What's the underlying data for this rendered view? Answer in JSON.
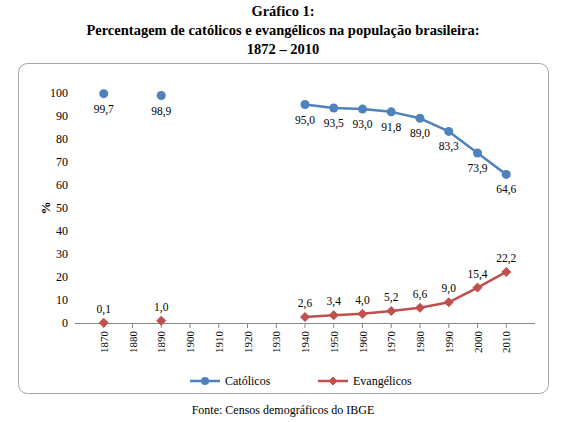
{
  "chart_data": {
    "type": "line",
    "title": [
      "Gráfico 1:",
      "Percentagem de católicos e evangélicos na população brasileira:",
      "1872 – 2010"
    ],
    "source": "Fonte: Censos demográficos do IBGE",
    "y_label": "%",
    "x": [
      1870,
      1880,
      1890,
      1900,
      1910,
      1920,
      1930,
      1940,
      1950,
      1960,
      1970,
      1980,
      1990,
      2000,
      2010
    ],
    "xlim": [
      1860,
      2020
    ],
    "xticks": [
      1870,
      1880,
      1890,
      1900,
      1910,
      1920,
      1930,
      1940,
      1950,
      1960,
      1970,
      1980,
      1990,
      2000,
      2010
    ],
    "ylim": [
      0,
      100
    ],
    "yticks": [
      0,
      10,
      20,
      30,
      40,
      50,
      60,
      70,
      80,
      90,
      100
    ],
    "grid": false,
    "legend": "bottom",
    "data_labels": true,
    "series": [
      {
        "name": "Católicos",
        "color": "#4f81bd",
        "marker": "circle",
        "values": [
          99.7,
          null,
          98.9,
          null,
          null,
          null,
          null,
          95.0,
          93.5,
          93.0,
          91.8,
          89.0,
          83.3,
          73.9,
          64.6
        ],
        "value_labels": [
          "99,7",
          null,
          "98,9",
          null,
          null,
          null,
          null,
          "95,0",
          "93,5",
          "93,0",
          "91,8",
          "89,0",
          "83,3",
          "73,9",
          "64,6"
        ]
      },
      {
        "name": "Evangélicos",
        "color": "#c0504d",
        "marker": "diamond",
        "values": [
          0.1,
          null,
          1.0,
          null,
          null,
          null,
          null,
          2.6,
          3.4,
          4.0,
          5.2,
          6.6,
          9.0,
          15.4,
          22.2
        ],
        "value_labels": [
          "0,1",
          null,
          "1,0",
          null,
          null,
          null,
          null,
          "2,6",
          "3,4",
          "4,0",
          "5,2",
          "6,6",
          "9,0",
          "15,4",
          "22,2"
        ]
      }
    ]
  }
}
